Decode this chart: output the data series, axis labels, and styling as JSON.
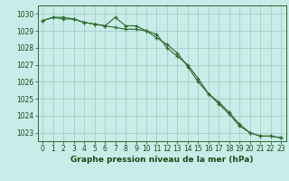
{
  "hours": [
    0,
    1,
    2,
    3,
    4,
    5,
    6,
    7,
    8,
    9,
    10,
    11,
    12,
    13,
    14,
    15,
    16,
    17,
    18,
    19,
    20,
    21,
    22,
    23
  ],
  "line1": [
    1029.6,
    1029.8,
    1029.7,
    1029.7,
    1029.5,
    1029.4,
    1029.3,
    1029.8,
    1029.3,
    1029.3,
    1029.0,
    1028.8,
    1028.0,
    1027.5,
    1027.0,
    1026.2,
    1025.3,
    1024.7,
    1024.1,
    1023.4,
    1023.0,
    1022.8,
    1022.8,
    1022.7
  ],
  "line2": [
    1029.6,
    1029.8,
    1029.8,
    1029.7,
    1029.5,
    1029.4,
    1029.3,
    1029.2,
    1029.1,
    1029.1,
    1029.0,
    1028.6,
    1028.2,
    1027.7,
    1026.9,
    1026.0,
    1025.3,
    1024.8,
    1024.2,
    1023.5,
    1023.0,
    1022.8,
    1022.8,
    1022.7
  ],
  "line_color": "#2d6a2d",
  "bg_color": "#c8ece8",
  "grid_color": "#a0c8c0",
  "text_color": "#1a4a1a",
  "ylim": [
    1022.5,
    1030.5
  ],
  "yticks": [
    1023,
    1024,
    1025,
    1026,
    1027,
    1028,
    1029,
    1030
  ],
  "xlabel": "Graphe pression niveau de la mer (hPa)",
  "xlabel_fontsize": 6.5,
  "tick_fontsize": 5.5,
  "marker": "+"
}
